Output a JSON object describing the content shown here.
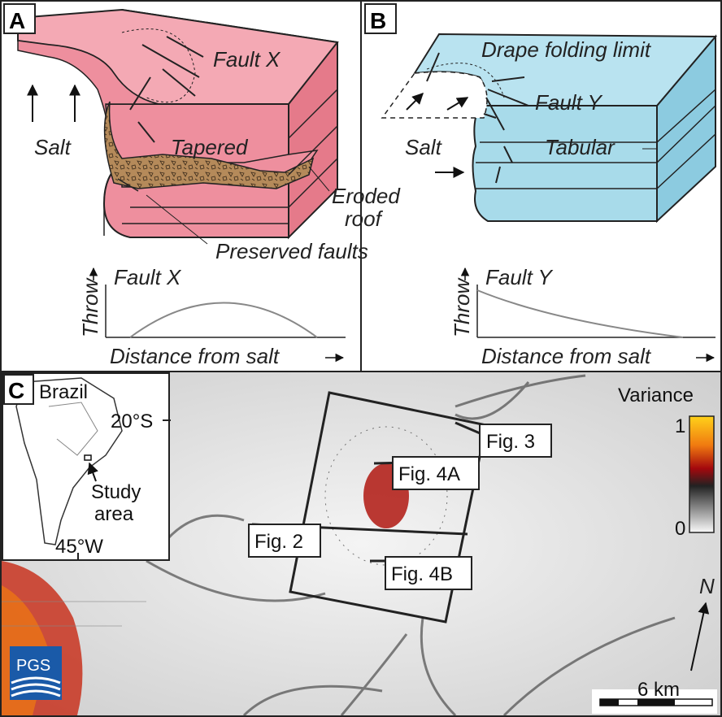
{
  "panel_a": {
    "label": "A",
    "fault": "Fault X",
    "salt": "Salt",
    "tapered": "Tapered",
    "eroded_roof": [
      "Eroded",
      "roof"
    ],
    "preserved_faults": "Preserved faults",
    "graph": {
      "y_label": "Throw",
      "title": "Fault X",
      "x_label": "Distance from salt"
    }
  },
  "panel_b": {
    "label": "B",
    "drape_limit": "Drape folding limit",
    "fault": "Fault Y",
    "salt": "Salt",
    "tabular": "Tabular",
    "graph": {
      "y_label": "Throw",
      "title": "Fault Y",
      "x_label": "Distance from salt"
    }
  },
  "panel_c": {
    "label": "C",
    "inset": {
      "country": "Brazil",
      "latitude": "20°S",
      "longitude": "45°W",
      "study_area": [
        "Study",
        "area"
      ]
    },
    "legend": {
      "title": "Variance",
      "max": "1",
      "min": "0"
    },
    "figure_boxes": [
      "Fig. 3",
      "Fig. 4A",
      "Fig. 2",
      "Fig. 4B"
    ],
    "north": "N",
    "scale": "6 km",
    "logo": "PGS"
  }
}
